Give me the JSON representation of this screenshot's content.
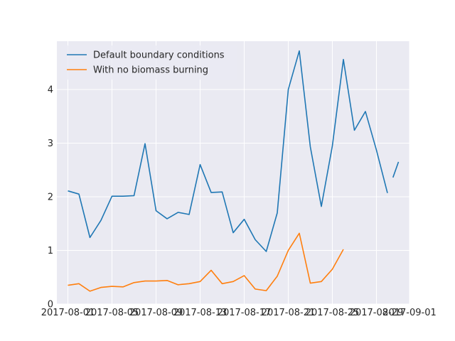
{
  "chart_data": {
    "type": "line",
    "title": "",
    "xlabel": "",
    "ylabel": "",
    "x_axis_type": "date",
    "xlim": [
      "2017-07-31",
      "2017-09-01"
    ],
    "ylim": [
      0,
      4.9
    ],
    "x_ticks": [
      "2017-08-01",
      "2017-08-05",
      "2017-08-09",
      "2017-08-13",
      "2017-08-17",
      "2017-08-21",
      "2017-08-25",
      "2017-08-29",
      "2017-09-01"
    ],
    "y_ticks": [
      0,
      1,
      2,
      3,
      4
    ],
    "grid": true,
    "legend_position": "top-left",
    "series": [
      {
        "name": "Default boundary conditions",
        "color": "#1f77b4",
        "x": [
          "2017-08-01",
          "2017-08-02",
          "2017-08-03",
          "2017-08-04",
          "2017-08-05",
          "2017-08-06",
          "2017-08-07",
          "2017-08-08",
          "2017-08-09",
          "2017-08-10",
          "2017-08-11",
          "2017-08-12",
          "2017-08-13",
          "2017-08-14",
          "2017-08-15",
          "2017-08-16",
          "2017-08-17",
          "2017-08-18",
          "2017-08-19",
          "2017-08-20",
          "2017-08-21",
          "2017-08-22",
          "2017-08-23",
          "2017-08-24",
          "2017-08-25",
          "2017-08-26",
          "2017-08-27",
          "2017-08-28",
          "2017-08-29",
          "2017-08-30"
        ],
        "values": [
          2.11,
          2.05,
          1.24,
          1.56,
          2.01,
          2.01,
          2.02,
          2.99,
          1.74,
          1.59,
          1.71,
          1.67,
          2.6,
          2.08,
          2.09,
          1.33,
          1.58,
          1.2,
          0.98,
          1.7,
          4.0,
          4.72,
          2.93,
          1.82,
          2.95,
          4.56,
          3.24,
          3.59,
          2.87,
          2.07
        ]
      },
      {
        "name": "With no biomass burning",
        "color": "#ff7f0e",
        "x": [
          "2017-08-01",
          "2017-08-02",
          "2017-08-03",
          "2017-08-04",
          "2017-08-05",
          "2017-08-06",
          "2017-08-07",
          "2017-08-08",
          "2017-08-09",
          "2017-08-10",
          "2017-08-11",
          "2017-08-12",
          "2017-08-13",
          "2017-08-14",
          "2017-08-15",
          "2017-08-16",
          "2017-08-17",
          "2017-08-18",
          "2017-08-19",
          "2017-08-20",
          "2017-08-21",
          "2017-08-22",
          "2017-08-23",
          "2017-08-24",
          "2017-08-25",
          "2017-08-26"
        ],
        "values": [
          0.35,
          0.38,
          0.24,
          0.31,
          0.33,
          0.32,
          0.4,
          0.43,
          0.43,
          0.44,
          0.36,
          0.38,
          0.42,
          0.63,
          0.38,
          0.42,
          0.53,
          0.28,
          0.25,
          0.52,
          1.0,
          1.32,
          0.39,
          0.42,
          0.65,
          1.02
        ]
      }
    ],
    "extra_points": [
      {
        "series": "Default boundary conditions",
        "x": "2017-08-31",
        "value": 2.65
      }
    ]
  }
}
